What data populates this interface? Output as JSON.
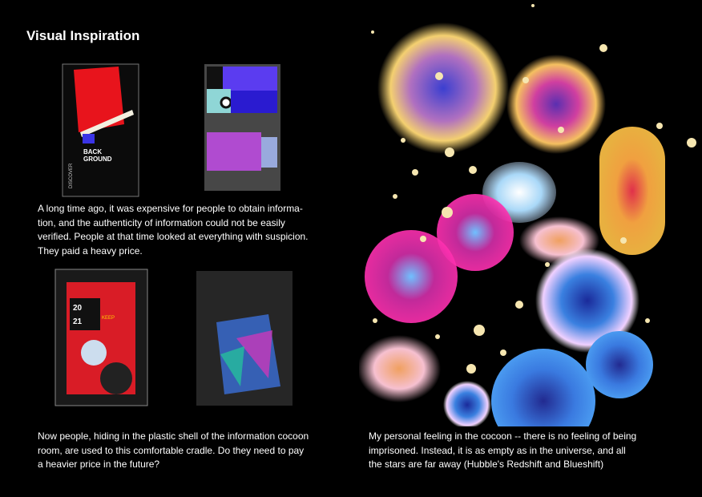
{
  "header": {
    "title": "Visual Inspiration"
  },
  "posters": {
    "first": {
      "lines": [
        "BACK",
        "GROUND"
      ],
      "side": "DISCOVER"
    },
    "third": {
      "year": [
        "20",
        "21"
      ],
      "tag": "KEEP"
    }
  },
  "paragraphs": [
    {
      "lines": [
        "A long time ago, it was expensive for people to obtain informa-",
        "tion, and the authenticity of information could not be easily",
        "verified. People at that time looked at everything with suspicion.",
        "They paid a heavy price."
      ]
    },
    {
      "lines": [
        "Now people, hiding in the plastic shell of the information cocoon",
        "room, are used to this comfortable cradle. Do they need to pay",
        "a heavier price in the future?"
      ]
    },
    {
      "lines": [
        "My personal feeling in the cocoon -- there is no feeling of being",
        "imprisoned. Instead, it is as empty as in the universe, and all",
        "the stars are far away (Hubble's Redshift and Blueshift)"
      ]
    }
  ]
}
